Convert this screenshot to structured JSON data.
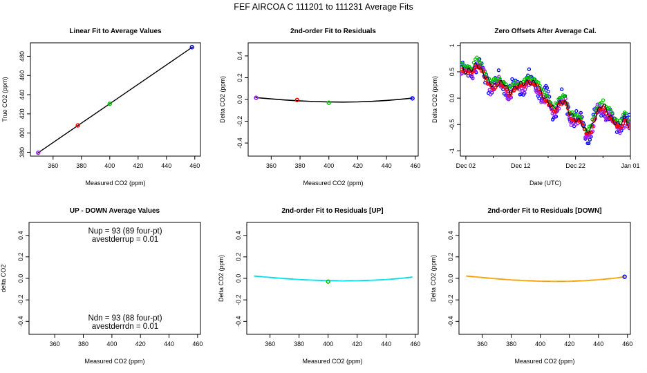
{
  "figure_title": "FEF   AIRCOA C   111201 to 111231   Average Fits",
  "chart_data": [
    {
      "id": "p1",
      "type": "scatter",
      "title": "Linear Fit to Average Values",
      "xlabel": "Measured CO2 (ppm)",
      "ylabel": "True CO2 (ppm)",
      "xlim": [
        344,
        464
      ],
      "ylim": [
        376,
        494
      ],
      "xticks": [
        360,
        380,
        400,
        420,
        440,
        460
      ],
      "yticks": [
        380,
        400,
        420,
        440,
        460,
        480
      ],
      "points": [
        {
          "x": 349.5,
          "y": 379.5,
          "color": "#a020f0"
        },
        {
          "x": 377.5,
          "y": 408,
          "color": "#ff0000"
        },
        {
          "x": 400,
          "y": 430.5,
          "color": "#00c800"
        },
        {
          "x": 458,
          "y": 489.5,
          "color": "#0000ff"
        }
      ],
      "fit_line": {
        "x": [
          349,
          458.5
        ],
        "y": [
          379,
          489.7
        ],
        "color": "#000000"
      }
    },
    {
      "id": "p2",
      "type": "scatter",
      "title": "2nd-order Fit to Residuals",
      "xlabel": "Measured CO2 (ppm)",
      "ylabel": "Delta CO2 (ppm)",
      "xlim": [
        344,
        462
      ],
      "ylim": [
        -0.52,
        0.52
      ],
      "xticks": [
        360,
        380,
        400,
        420,
        440,
        460
      ],
      "yticks": [
        -0.4,
        -0.2,
        0.0,
        0.2,
        0.4
      ],
      "points": [
        {
          "x": 349.5,
          "y": 0.015,
          "color": "#a020f0"
        },
        {
          "x": 378,
          "y": -0.005,
          "color": "#ff0000"
        },
        {
          "x": 400,
          "y": -0.03,
          "color": "#00c800"
        },
        {
          "x": 458,
          "y": 0.01,
          "color": "#0000ff"
        }
      ],
      "fit_curve": {
        "x": [
          349,
          360,
          370,
          380,
          390,
          400,
          410,
          420,
          430,
          440,
          450,
          458
        ],
        "y": [
          0.018,
          0.005,
          -0.005,
          -0.013,
          -0.019,
          -0.023,
          -0.024,
          -0.022,
          -0.017,
          -0.009,
          0.002,
          0.012
        ],
        "color": "#000000"
      }
    },
    {
      "id": "p3",
      "type": "scatter",
      "title": "Zero Offsets After Average Cal.",
      "xlabel": "Date (UTC)",
      "ylabel": "Delta CO2 (ppm)",
      "xlim": [
        0,
        31
      ],
      "ylim": [
        -1.1,
        1.05
      ],
      "xticks": [
        1,
        11,
        21,
        31
      ],
      "xtick_labels": [
        "Dec 02",
        "Dec 12",
        "Dec 22",
        "Jan 01"
      ],
      "yticks": [
        -1.0,
        -0.5,
        0.0,
        0.5,
        1.0
      ],
      "series": [
        {
          "name": "blue",
          "color": "#0000ff",
          "offset": 0,
          "spread": 0.17
        },
        {
          "name": "magenta",
          "color": "#a020f0",
          "offset": -0.04,
          "spread": 0.12
        },
        {
          "name": "green",
          "color": "#00c800",
          "offset": 0.07,
          "spread": 0.05
        },
        {
          "name": "red",
          "color": "#ff0000",
          "offset": -0.03,
          "spread": 0.04
        }
      ],
      "trend": {
        "x": [
          0,
          1,
          2,
          3,
          4,
          5,
          6,
          7,
          8,
          9,
          10,
          11,
          12,
          13,
          14,
          15,
          16,
          17,
          18,
          19,
          20,
          21,
          22,
          23,
          24,
          25,
          26,
          27,
          28,
          29,
          30,
          31
        ],
        "y": [
          0.6,
          0.5,
          0.55,
          0.65,
          0.5,
          0.35,
          0.22,
          0.28,
          0.3,
          0.1,
          0.2,
          0.28,
          0.3,
          0.3,
          0.28,
          0.05,
          -0.08,
          -0.2,
          -0.1,
          -0.05,
          -0.3,
          -0.4,
          -0.45,
          -0.65,
          -0.55,
          -0.25,
          -0.1,
          -0.3,
          -0.45,
          -0.5,
          -0.35,
          -0.6
        ]
      }
    },
    {
      "id": "p4",
      "type": "scatter",
      "title": "UP - DOWN Average Values",
      "xlabel": "Measured CO2 (ppm)",
      "ylabel": "delta CO2",
      "xlim": [
        342,
        462
      ],
      "ylim": [
        -0.52,
        0.52
      ],
      "xticks": [
        360,
        380,
        400,
        420,
        440,
        460
      ],
      "yticks": [
        -0.4,
        -0.2,
        0.0,
        0.2,
        0.4
      ],
      "annotations": [
        "Nup = 93 (89 four-pt)",
        "avestderrup =  0.01",
        "Ndn = 93 (88 four-pt)",
        "avestderrdn =  0.01"
      ]
    },
    {
      "id": "p5",
      "type": "scatter",
      "title": "2nd-order Fit to Residuals [UP]",
      "xlabel": "Measured CO2 (ppm)",
      "ylabel": "Delta CO2 (ppm)",
      "xlim": [
        344,
        462
      ],
      "ylim": [
        -0.52,
        0.52
      ],
      "xticks": [
        360,
        380,
        400,
        420,
        440,
        460
      ],
      "yticks": [
        -0.4,
        -0.2,
        0.0,
        0.2,
        0.4
      ],
      "points": [
        {
          "x": 400,
          "y": -0.03,
          "color": "#00c800"
        }
      ],
      "fit_curve": {
        "x": [
          349,
          360,
          370,
          380,
          390,
          400,
          410,
          420,
          430,
          440,
          450,
          458
        ],
        "y": [
          0.022,
          0.009,
          -0.002,
          -0.011,
          -0.017,
          -0.021,
          -0.023,
          -0.022,
          -0.018,
          -0.011,
          0.0,
          0.012
        ],
        "color": "#00e5ee"
      }
    },
    {
      "id": "p6",
      "type": "scatter",
      "title": "2nd-order Fit to Residuals [DOWN]",
      "xlabel": "Measured CO2 (ppm)",
      "ylabel": "Delta CO2 (ppm)",
      "xlim": [
        344,
        462
      ],
      "ylim": [
        -0.52,
        0.52
      ],
      "xticks": [
        360,
        380,
        400,
        420,
        440,
        460
      ],
      "yticks": [
        -0.4,
        -0.2,
        0.0,
        0.2,
        0.4
      ],
      "points": [
        {
          "x": 458,
          "y": 0.015,
          "color": "#0000ff"
        }
      ],
      "fit_curve": {
        "x": [
          349,
          360,
          370,
          380,
          390,
          400,
          410,
          420,
          430,
          440,
          450,
          458
        ],
        "y": [
          0.022,
          0.008,
          -0.004,
          -0.014,
          -0.021,
          -0.026,
          -0.028,
          -0.027,
          -0.022,
          -0.013,
          0.0,
          0.014
        ],
        "color": "#ffa500"
      }
    }
  ]
}
